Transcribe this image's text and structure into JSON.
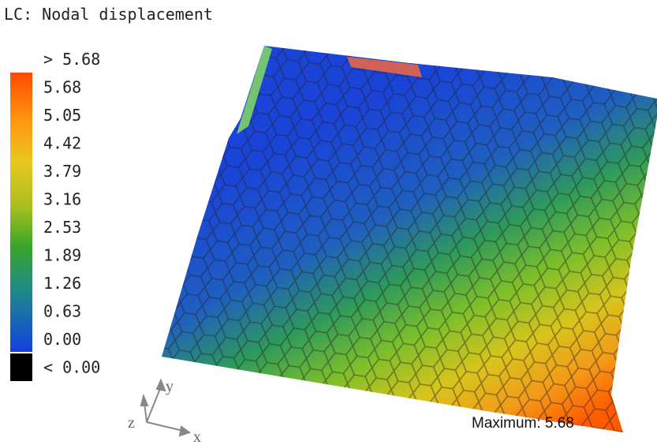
{
  "title": "LC: Nodal displacement",
  "legend": {
    "labels": [
      "> 5.68",
      "5.68",
      "5.05",
      "4.42",
      "3.79",
      "3.16",
      "2.53",
      "1.89",
      "1.26",
      "0.63",
      "0.00",
      "< 0.00"
    ]
  },
  "axes": {
    "y": "y",
    "z": "z",
    "x": "x"
  },
  "maximum": "Maximum: 5.68"
}
